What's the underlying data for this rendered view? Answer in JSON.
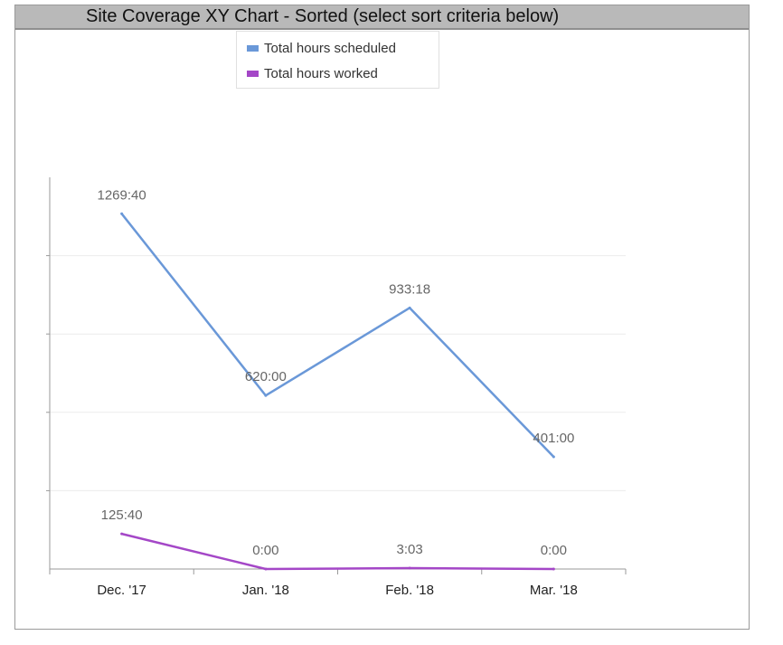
{
  "chart_data": {
    "type": "line",
    "title": "Site Coverage XY Chart - Sorted (select sort criteria below)",
    "categories": [
      "Dec. '17",
      "Jan. '18",
      "Feb. '18",
      "Mar. '18"
    ],
    "series": [
      {
        "name": "Total hours scheduled",
        "color": "#6a98d8",
        "values": [
          1269.667,
          620.0,
          933.3,
          401.0
        ],
        "labels": [
          "1269:40",
          "620:00",
          "933:18",
          "401:00"
        ]
      },
      {
        "name": "Total hours worked",
        "color": "#a447c7",
        "values": [
          125.667,
          0.0,
          3.05,
          0.0
        ],
        "labels": [
          "125:40",
          "0:00",
          "3:03",
          "0:00"
        ]
      }
    ],
    "xlabel": "",
    "ylabel": "",
    "ylim": [
      0,
      1400
    ],
    "grid": true,
    "legend_position": "top"
  }
}
